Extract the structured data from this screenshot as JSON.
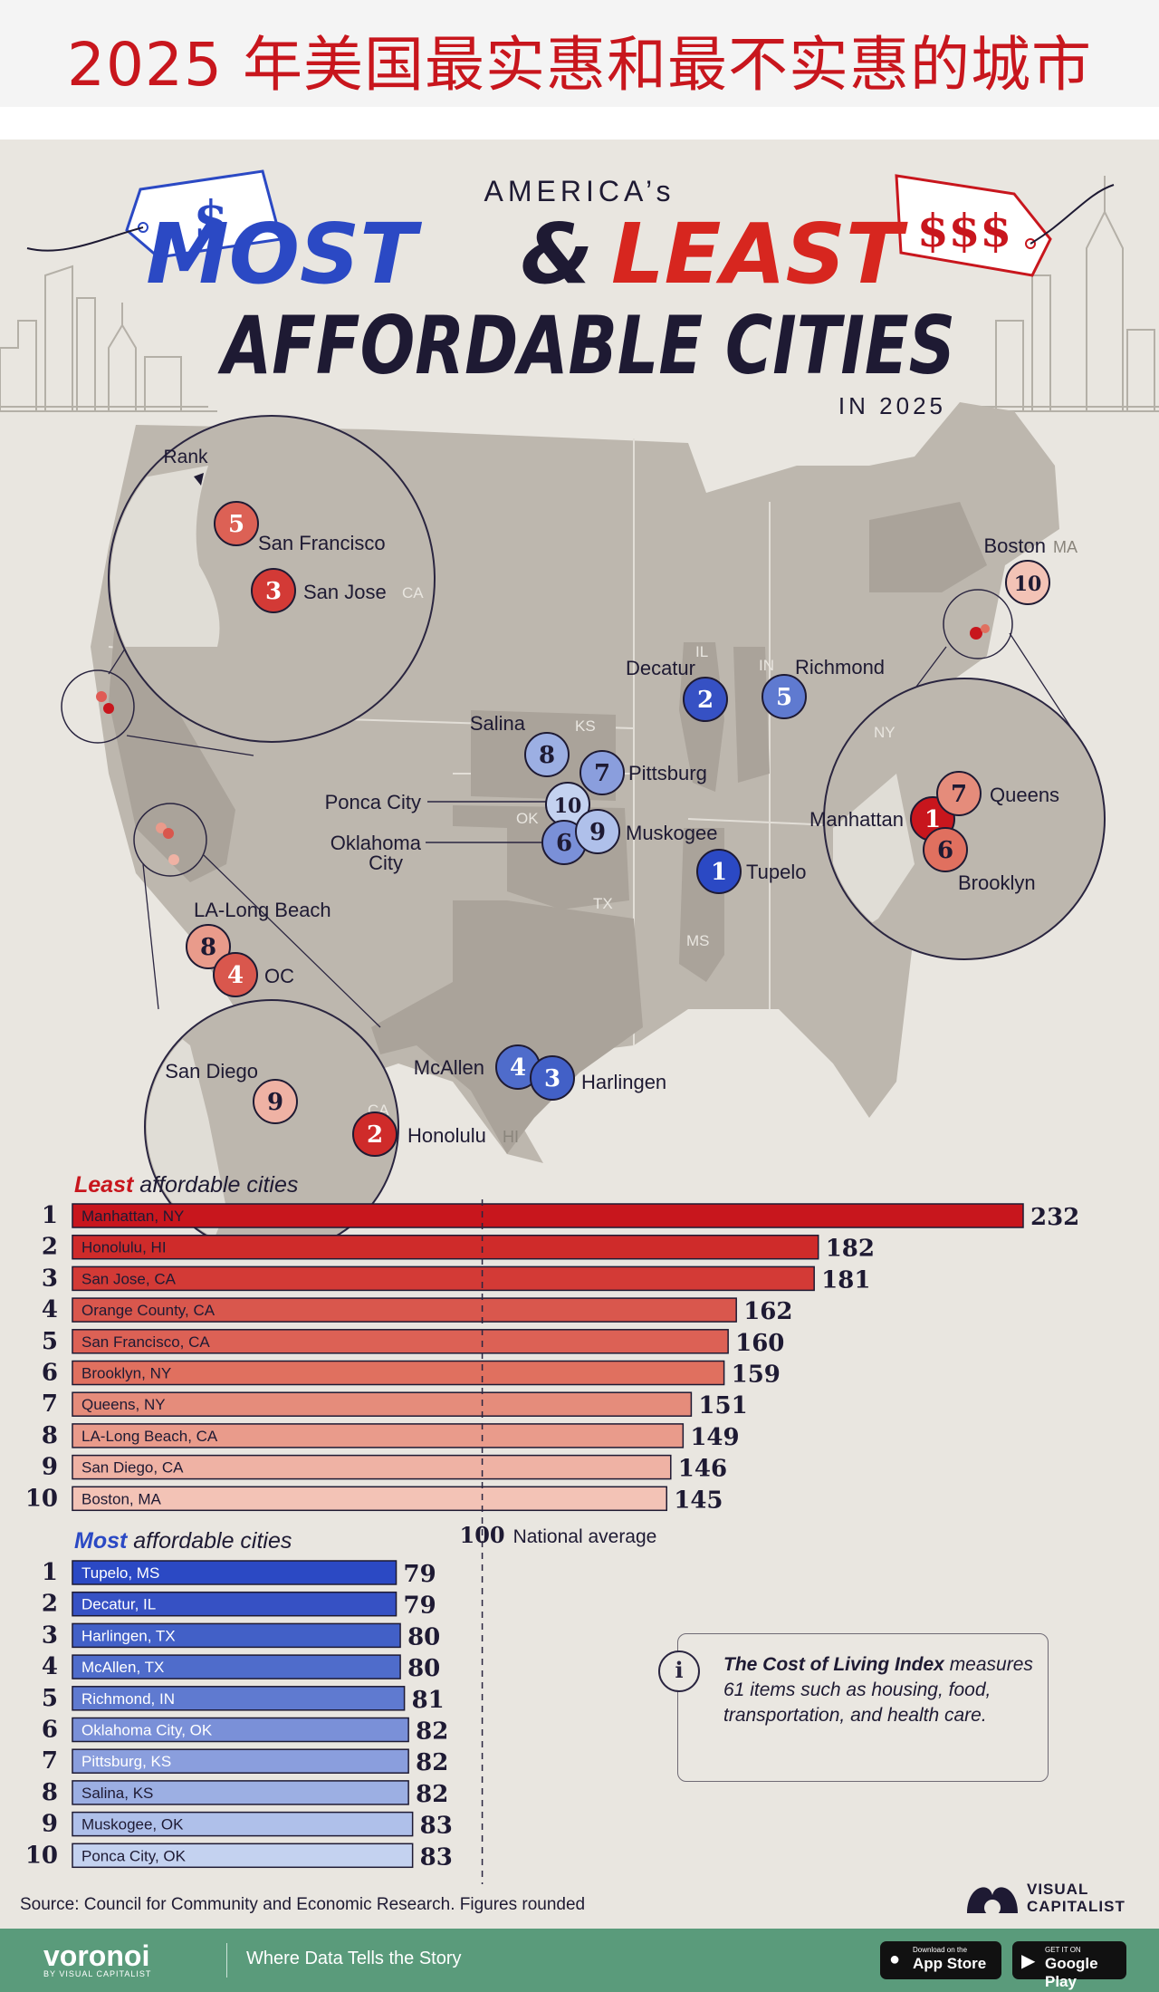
{
  "banner_title": "2025 年美国最实惠和最不实惠的城市",
  "poster": {
    "kicker": "AMERICA’s",
    "title_most": "MOST",
    "title_amp": "&",
    "title_least": "LEAST",
    "title_line2": "AFFORDABLE CITIES",
    "year_line": "IN 2025",
    "tag_left": "$",
    "tag_right": "$$$"
  },
  "map": {
    "rank_label": "Rank",
    "state_labels": [
      "CA",
      "CA",
      "CA",
      "IL",
      "IN",
      "KS",
      "OK",
      "TX",
      "MS",
      "NY",
      "MA",
      "HI"
    ],
    "markers": [
      {
        "rank": "5",
        "city": "San Francisco",
        "group": "least"
      },
      {
        "rank": "3",
        "city": "San Jose",
        "group": "least"
      },
      {
        "rank": "8",
        "city": "LA-Long Beach",
        "group": "least"
      },
      {
        "rank": "4",
        "city": "OC",
        "group": "least"
      },
      {
        "rank": "9",
        "city": "San Diego",
        "group": "least"
      },
      {
        "rank": "2",
        "city": "Honolulu",
        "group": "least"
      },
      {
        "rank": "10",
        "city": "Boston",
        "group": "least"
      },
      {
        "rank": "1",
        "city": "Manhattan",
        "group": "least"
      },
      {
        "rank": "7",
        "city": "Queens",
        "group": "least"
      },
      {
        "rank": "6",
        "city": "Brooklyn",
        "group": "least"
      },
      {
        "rank": "2",
        "city": "Decatur",
        "group": "most"
      },
      {
        "rank": "5",
        "city": "Richmond",
        "group": "most"
      },
      {
        "rank": "8",
        "city": "Salina",
        "group": "most"
      },
      {
        "rank": "7",
        "city": "Pittsburg",
        "group": "most"
      },
      {
        "rank": "10",
        "city": "Ponca City",
        "group": "most"
      },
      {
        "rank": "6",
        "city": "Oklahoma City",
        "group": "most"
      },
      {
        "rank": "9",
        "city": "Muskogee",
        "group": "most"
      },
      {
        "rank": "1",
        "city": "Tupelo",
        "group": "most"
      },
      {
        "rank": "4",
        "city": "McAllen",
        "group": "most"
      },
      {
        "rank": "3",
        "city": "Harlingen",
        "group": "most"
      }
    ]
  },
  "chart_data": {
    "type": "bar",
    "title": "America's Most & Least Affordable Cities in 2025",
    "metric": "Cost of Living Index",
    "reference_value": 100,
    "reference_label": "National average",
    "series": [
      {
        "name": "Least affordable cities",
        "label_emphasis": "Least",
        "label_rest": "affordable cities",
        "categories": [
          "Manhattan, NY",
          "Honolulu, HI",
          "San Jose, CA",
          "Orange County, CA",
          "San Francisco, CA",
          "Brooklyn, NY",
          "Queens, NY",
          "LA-Long Beach, CA",
          "San Diego, CA",
          "Boston, MA"
        ],
        "ranks": [
          1,
          2,
          3,
          4,
          5,
          6,
          7,
          8,
          9,
          10
        ],
        "values": [
          232,
          182,
          181,
          162,
          160,
          159,
          151,
          149,
          146,
          145
        ],
        "colors": [
          "#c8161d",
          "#cf2b2a",
          "#d33a36",
          "#d9574d",
          "#dc6155",
          "#e0705f",
          "#e58c7b",
          "#e99b8b",
          "#efb2a4",
          "#f3c3b6"
        ]
      },
      {
        "name": "Most affordable cities",
        "label_emphasis": "Most",
        "label_rest": "affordable cities",
        "categories": [
          "Tupelo, MS",
          "Decatur, IL",
          "Harlingen, TX",
          "McAllen, TX",
          "Richmond, IN",
          "Oklahoma City, OK",
          "Pittsburg, KS",
          "Salina, KS",
          "Muskogee, OK",
          "Ponca City, OK"
        ],
        "ranks": [
          1,
          2,
          3,
          4,
          5,
          6,
          7,
          8,
          9,
          10
        ],
        "values": [
          79,
          79,
          80,
          80,
          81,
          82,
          82,
          82,
          83,
          83
        ],
        "colors": [
          "#2b49c4",
          "#3651c4",
          "#4260c7",
          "#4f6ccb",
          "#5f7ad0",
          "#7a90d8",
          "#8a9edd",
          "#9cafe3",
          "#afc0ea",
          "#c4d2f0"
        ]
      }
    ]
  },
  "info": {
    "icon": "i",
    "lead": "The Cost of Living Index",
    "rest": "measures 61 items such as housing, food, transportation, and health care."
  },
  "source": "Source: Council for Community and Economic Research. Figures rounded",
  "vc_logo": "VISUAL CAPITALIST",
  "footer": {
    "brand": "voronoi",
    "brand_sub": "BY VISUAL CAPITALIST",
    "tagline": "Where Data Tells the Story",
    "appstore_small": "Download on the",
    "appstore_big": "App Store",
    "googleplay_small": "GET IT ON",
    "googleplay_big": "Google Play"
  }
}
